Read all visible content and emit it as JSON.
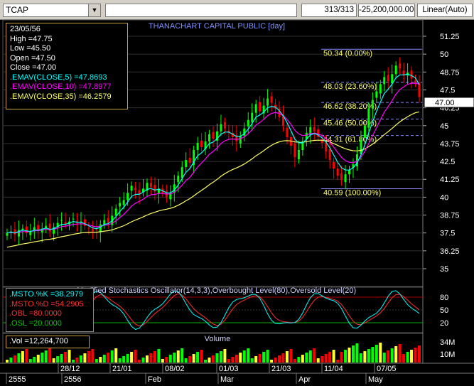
{
  "toolbar": {
    "symbol": "TCAP",
    "bar_count": "313/313",
    "value": "-25,200,000.00",
    "scale_mode": "Linear(Auto)"
  },
  "chart": {
    "title": "THANACHART CAPITAL PUBLIC [day]",
    "last_price": "47.00"
  },
  "info": {
    "date": "23/05/56",
    "high": "High  =47.75",
    "low": "Low   =45.50",
    "open": "Open  =47.50",
    "close": "Close  =47.00",
    "ema5": ".EMAV(CLOSE,5)  =47.8693",
    "ema10": ".EMAV(CLOSE,10)  =47.8977",
    "ema35": ".EMAV(CLOSE,35)  =46.2579"
  },
  "oscillator": {
    "title": "Modified Stochastics Oscillator(14,3,3),Overbought Level(80),Oversold Level(20)",
    "k": ".MSTO.%K   =38.2979",
    "d": ".MSTO.%D   =54.2905",
    "obl": ".OBL  =80.0000",
    "osl": ".OSL  =20.0000",
    "axis_labels": [
      "80",
      "50",
      "20"
    ]
  },
  "volume": {
    "title": "Volume",
    "label": ".Vol  =12,264,700",
    "axis_labels": [
      "34M",
      "10M"
    ]
  },
  "fib_labels": [
    "50.34 (0.00%)",
    "48.03 (23.60%)",
    "46.62 (38.20%)",
    "45.46 (50.00%)",
    "44.31 (61.80%)",
    "40.59 (100.00%)"
  ],
  "price_axis": [
    "51.25",
    "50",
    "48.75",
    "47.5",
    "46.25",
    "45",
    "43.75",
    "42.5",
    "41.25",
    "40",
    "38.75",
    "37.5",
    "36.25",
    "35"
  ],
  "x_axis_top": [
    "28/12",
    "21/01",
    "08/02",
    "01/03",
    "21/03",
    "11/04",
    "07/05"
  ],
  "x_axis_bottom": [
    "2555",
    "2556",
    "Feb",
    "Mar",
    "Apr",
    "May"
  ],
  "colors": {
    "up": "#00ff00",
    "down": "#ff0000",
    "ema5": "#00ffff",
    "ema10": "#ff00ff",
    "ema35": "#ffff66",
    "fib": "#ffff66",
    "title": "#8090ff",
    "grid": "#303030"
  },
  "chart_data": {
    "type": "candlestick",
    "title": "THANACHART CAPITAL PUBLIC [day]",
    "ylim": [
      35,
      51.25
    ],
    "closes": [
      37.5,
      37.6,
      37.4,
      37.7,
      37.8,
      37.5,
      37.6,
      37.9,
      37.7,
      37.8,
      38.0,
      37.6,
      37.9,
      38.2,
      38.4,
      38.1,
      38.3,
      38.5,
      38.2,
      38.3,
      38.0,
      37.8,
      37.6,
      37.7,
      38.1,
      38.4,
      38.2,
      38.7,
      39.2,
      39.6,
      39.8,
      40.3,
      40.8,
      40.5,
      40.2,
      40.6,
      41.0,
      40.7,
      40.4,
      40.6,
      40.3,
      40.0,
      40.3,
      40.9,
      41.5,
      42.1,
      42.6,
      42.4,
      43.3,
      43.8,
      43.5,
      43.9,
      44.4,
      44.1,
      44.6,
      45.1,
      44.8,
      44.5,
      44.2,
      43.9,
      44.3,
      44.8,
      45.4,
      45.9,
      46.5,
      46.0,
      46.4,
      46.9,
      46.6,
      46.2,
      45.6,
      45.0,
      44.2,
      43.6,
      42.8,
      43.3,
      43.9,
      44.5,
      44.9,
      44.6,
      44.2,
      43.8,
      43.2,
      42.6,
      42.0,
      41.5,
      41.2,
      41.6,
      41.9,
      42.3,
      43.0,
      44.0,
      45.0,
      46.2,
      46.8,
      47.4,
      47.9,
      48.4,
      48.1,
      48.6,
      49.2,
      49.0,
      48.5,
      48.7,
      48.3,
      48.0,
      47.0
    ],
    "ema5": [
      37.5,
      37.55,
      37.5,
      37.6,
      37.7,
      37.65,
      37.6,
      37.7,
      37.7,
      37.75,
      37.85,
      37.75,
      37.8,
      37.95,
      38.1,
      38.1,
      38.2,
      38.3,
      38.25,
      38.25,
      38.15,
      38.0,
      37.85,
      37.8,
      37.9,
      38.1,
      38.15,
      38.35,
      38.65,
      39.0,
      39.3,
      39.65,
      40.05,
      40.2,
      40.2,
      40.35,
      40.55,
      40.6,
      40.5,
      40.55,
      40.45,
      40.3,
      40.3,
      40.5,
      40.85,
      41.3,
      41.75,
      42.0,
      42.45,
      42.9,
      43.1,
      43.4,
      43.75,
      43.85,
      44.1,
      44.4,
      44.55,
      44.55,
      44.4,
      44.25,
      44.25,
      44.45,
      44.75,
      45.15,
      45.6,
      45.75,
      45.95,
      46.25,
      46.35,
      46.3,
      46.05,
      45.7,
      45.2,
      44.65,
      44.05,
      43.8,
      43.8,
      44.05,
      44.35,
      44.45,
      44.35,
      44.15,
      43.85,
      43.45,
      42.95,
      42.45,
      42.05,
      41.9,
      41.9,
      42.05,
      42.4,
      42.95,
      43.65,
      44.5,
      45.25,
      46.0,
      46.65,
      47.25,
      47.55,
      47.9,
      48.35,
      48.55,
      48.55,
      48.6,
      48.5,
      48.35,
      47.87
    ],
    "ema10": [
      37.5,
      37.52,
      37.5,
      37.55,
      37.6,
      37.6,
      37.6,
      37.65,
      37.66,
      37.7,
      37.76,
      37.74,
      37.76,
      37.84,
      37.94,
      37.98,
      38.03,
      38.1,
      38.12,
      38.14,
      38.12,
      38.06,
      37.98,
      37.93,
      37.96,
      38.04,
      38.07,
      38.18,
      38.35,
      38.58,
      38.8,
      39.07,
      39.38,
      39.58,
      39.7,
      39.86,
      40.05,
      40.17,
      40.2,
      40.26,
      40.27,
      40.22,
      40.23,
      40.35,
      40.56,
      40.84,
      41.16,
      41.39,
      41.74,
      42.11,
      42.39,
      42.68,
      43.0,
      43.2,
      43.45,
      43.75,
      43.94,
      44.04,
      44.07,
      44.04,
      44.09,
      44.22,
      44.44,
      44.71,
      45.04,
      45.22,
      45.43,
      45.7,
      45.86,
      45.92,
      45.86,
      45.7,
      45.43,
      45.09,
      44.67,
      44.42,
      44.31,
      44.34,
      44.44,
      44.47,
      44.42,
      44.31,
      44.11,
      43.84,
      43.5,
      43.13,
      42.78,
      42.56,
      42.44,
      42.41,
      42.52,
      42.79,
      43.2,
      43.75,
      44.3,
      44.86,
      45.41,
      45.95,
      46.34,
      46.75,
      47.2,
      47.53,
      47.71,
      47.89,
      47.96,
      47.97,
      47.9
    ]
  }
}
